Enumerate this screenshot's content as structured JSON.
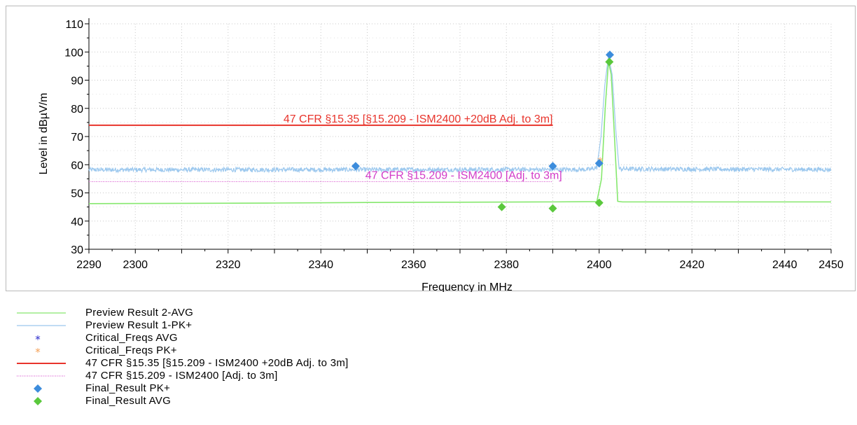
{
  "chart_data": {
    "type": "line",
    "xlabel": "Frequency in MHz",
    "ylabel": "Level in dBµV/m",
    "xlim": [
      2290,
      2450
    ],
    "ylim": [
      30,
      110
    ],
    "x_ticks": [
      2290,
      2300,
      2320,
      2340,
      2360,
      2380,
      2400,
      2420,
      2440,
      2450
    ],
    "y_ticks": [
      30,
      40,
      50,
      60,
      70,
      80,
      90,
      100,
      110
    ],
    "grid": true,
    "series": [
      {
        "name": "Preview Result 2-AVG",
        "kind": "line",
        "color": "#86e86e",
        "x": [
          2290,
          2310,
          2330,
          2350,
          2370,
          2390,
          2399.5,
          2400.5,
          2401.3,
          2402,
          2402.6,
          2403.3,
          2404,
          2405,
          2420,
          2440,
          2450
        ],
        "y": [
          46.2,
          46.3,
          46.4,
          46.6,
          46.7,
          46.8,
          46.9,
          55,
          80,
          96.5,
          92,
          70,
          47,
          46.8,
          46.8,
          46.8,
          46.8
        ]
      },
      {
        "name": "Preview Result 1-PK+",
        "kind": "noise",
        "color": "#9cc8ee",
        "base": 58.2,
        "noise": 0.8,
        "x": [
          2290,
          2398,
          2399.5,
          2400.4,
          2401.2,
          2402,
          2402.8,
          2403.6,
          2404.3,
          2450
        ],
        "y": [
          58.2,
          58.3,
          59,
          70,
          88,
          98.5,
          92,
          72,
          58.5,
          58.3
        ]
      },
      {
        "name": "Critical_Freqs AVG",
        "kind": "marker",
        "color": "#2828cc",
        "x": [],
        "y": []
      },
      {
        "name": "Critical_Freqs PK+",
        "kind": "marker",
        "color": "#f5a056",
        "x": [
          2400.2
        ],
        "y": [
          61.5
        ]
      },
      {
        "name": "47 CFR §15.35 [§15.209 - ISM2400 +20dB Adj. to 3m]",
        "kind": "limit",
        "color": "#e8342c",
        "x": [
          2290,
          2390
        ],
        "y": [
          74,
          74
        ]
      },
      {
        "name": "47 CFR §15.209 - ISM2400 [Adj. to 3m]",
        "kind": "limit-dotted",
        "color": "#d23cc8",
        "x": [
          2290,
          2390
        ],
        "y": [
          54,
          54
        ]
      },
      {
        "name": "Final_Result PK+",
        "kind": "diamond",
        "color": "#3c8cdc",
        "x": [
          2347.5,
          2390,
          2400,
          2402.3
        ],
        "y": [
          59.5,
          59.5,
          60.5,
          99
        ]
      },
      {
        "name": "Final_Result AVG",
        "kind": "diamond",
        "color": "#5ac83c",
        "x": [
          2379,
          2390,
          2400,
          2402.2
        ],
        "y": [
          45,
          44.5,
          46.5,
          96.5
        ]
      }
    ],
    "annotations": [
      {
        "text": "47 CFR §15.35 [§15.209 - ISM2400 +20dB Adj. to 3m]",
        "color": "#e8342c",
        "x_end": 2390,
        "y": 74
      },
      {
        "text": "47 CFR §15.209 - ISM2400 [Adj. to 3m]",
        "color": "#d23cc8",
        "x_end": 2392,
        "y": 54
      }
    ]
  },
  "legend": [
    {
      "label": "Preview Result 2-AVG",
      "symbol": "line",
      "color": "#86e86e"
    },
    {
      "label": "Preview Result 1-PK+",
      "symbol": "line",
      "color": "#9cc8ee"
    },
    {
      "label": "Critical_Freqs AVG",
      "symbol": "star",
      "color": "#2828cc"
    },
    {
      "label": "Critical_Freqs PK+",
      "symbol": "star",
      "color": "#f5a056"
    },
    {
      "label": "47 CFR §15.35 [§15.209 - ISM2400 +20dB Adj. to 3m]",
      "symbol": "thick-line",
      "color": "#e8342c"
    },
    {
      "label": "47 CFR §15.209 - ISM2400 [Adj. to 3m]",
      "symbol": "dotted-line",
      "color": "#d23cc8"
    },
    {
      "label": "Final_Result PK+",
      "symbol": "diamond",
      "color": "#3c8cdc"
    },
    {
      "label": "Final_Result AVG",
      "symbol": "diamond",
      "color": "#5ac83c"
    }
  ]
}
